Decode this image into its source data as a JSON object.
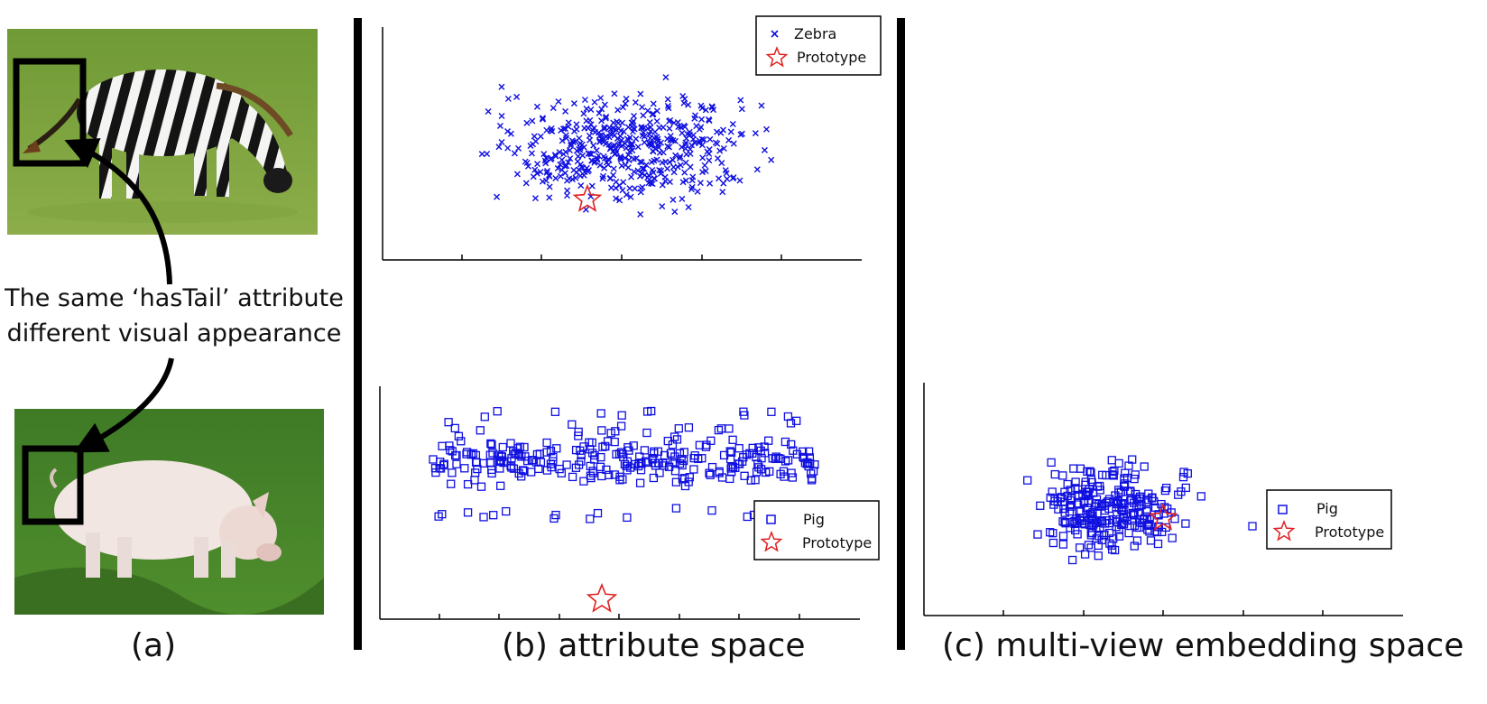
{
  "panel_a": {
    "caption": "(a)",
    "attribute_note_line1": "The same ‘hasTail’ attribute",
    "attribute_note_line2": "different visual appearance",
    "top_photo": "zebra",
    "bottom_photo": "pig"
  },
  "panel_b": {
    "caption": "(b) attribute space",
    "top_legend": {
      "series": "Zebra",
      "prototype": "Prototype"
    },
    "bottom_legend": {
      "series": "Pig",
      "prototype": "Prototype"
    }
  },
  "panel_c": {
    "caption": "(c) multi-view embedding space",
    "legend": {
      "series": "Pig",
      "prototype": "Prototype"
    }
  },
  "colors": {
    "points": "#1010e0",
    "prototype": "#e02020",
    "axes": "#000000"
  },
  "chart_data": [
    {
      "type": "scatter",
      "panel": "b-top",
      "series": [
        {
          "name": "Zebra",
          "marker": "x"
        },
        {
          "name": "Prototype",
          "marker": "star"
        }
      ],
      "point_count_approx": 480,
      "xlim": [
        0,
        6
      ],
      "ylim": [
        0,
        4
      ],
      "prototype": [
        2.5,
        0.9
      ]
    },
    {
      "type": "scatter",
      "panel": "b-bottom",
      "series": [
        {
          "name": "Pig",
          "marker": "square"
        },
        {
          "name": "Prototype",
          "marker": "star"
        }
      ],
      "point_count_approx": 300,
      "xlim": [
        0,
        8
      ],
      "ylim": [
        0,
        4
      ],
      "prototype": [
        3.7,
        0.3
      ]
    },
    {
      "type": "scatter",
      "panel": "c",
      "series": [
        {
          "name": "Pig",
          "marker": "square"
        },
        {
          "name": "Prototype",
          "marker": "star"
        }
      ],
      "point_count_approx": 260,
      "xlim": [
        0,
        6
      ],
      "ylim": [
        0,
        4
      ],
      "prototype": [
        3.0,
        1.6
      ]
    }
  ]
}
